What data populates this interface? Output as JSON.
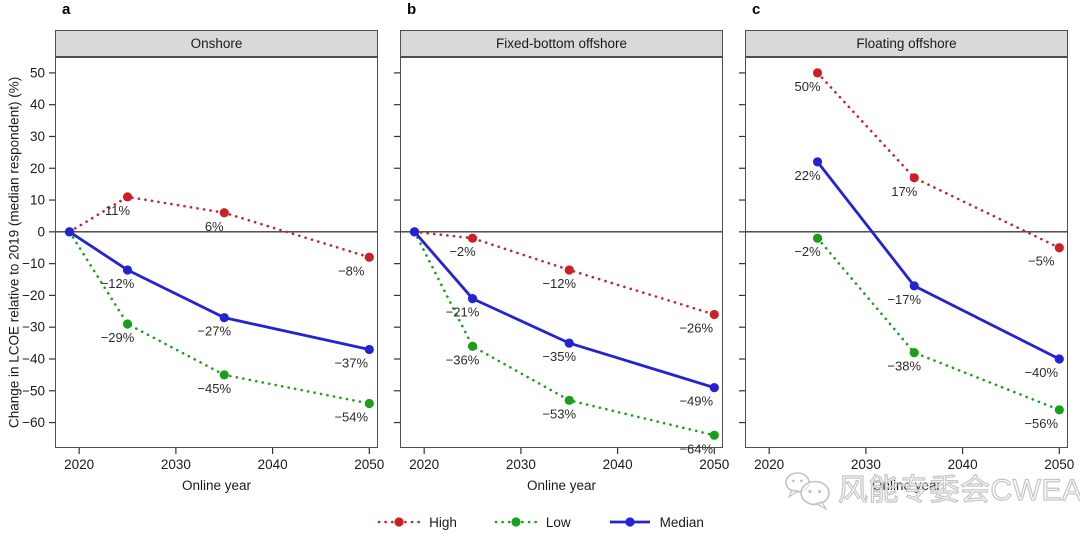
{
  "chart_data": {
    "type": "line",
    "title": "",
    "ylabel": "Change in LCOE relative to 2019 (median respondent) (%)",
    "xlabel": "Online year",
    "ylim": [
      -68,
      55
    ],
    "xlim": [
      2017.5,
      2050.9
    ],
    "grid": false,
    "zero_reference_line": 0,
    "yticks": [
      {
        "v": 50,
        "label": "50"
      },
      {
        "v": 40,
        "label": "40"
      },
      {
        "v": 30,
        "label": "30"
      },
      {
        "v": 20,
        "label": "20"
      },
      {
        "v": 10,
        "label": "10"
      },
      {
        "v": 0,
        "label": "0"
      },
      {
        "v": -10,
        "label": "−10"
      },
      {
        "v": -20,
        "label": "−20"
      },
      {
        "v": -30,
        "label": "−30"
      },
      {
        "v": -40,
        "label": "−40"
      },
      {
        "v": -50,
        "label": "−50"
      },
      {
        "v": -60,
        "label": "−60"
      }
    ],
    "xticks": [
      {
        "v": 2020,
        "label": "2020"
      },
      {
        "v": 2030,
        "label": "2030"
      },
      {
        "v": 2040,
        "label": "2040"
      },
      {
        "v": 2050,
        "label": "2050"
      }
    ],
    "legend": [
      {
        "name": "High",
        "color": "#cc1f26",
        "style": "dotted"
      },
      {
        "name": "Low",
        "color": "#18a018",
        "style": "dotted"
      },
      {
        "name": "Median",
        "color": "#2323d3",
        "style": "solid"
      }
    ],
    "legend_position": "bottom-center",
    "panels": [
      {
        "letter": "a",
        "title": "Onshore",
        "series": [
          {
            "name": "High",
            "points": [
              {
                "x": 2019,
                "y": 0,
                "label": ""
              },
              {
                "x": 2025,
                "y": 11,
                "label": "11%"
              },
              {
                "x": 2035,
                "y": 6,
                "label": "6%"
              },
              {
                "x": 2050,
                "y": -8,
                "label": "−8%"
              }
            ]
          },
          {
            "name": "Low",
            "points": [
              {
                "x": 2019,
                "y": 0,
                "label": ""
              },
              {
                "x": 2025,
                "y": -29,
                "label": "−29%"
              },
              {
                "x": 2035,
                "y": -45,
                "label": "−45%"
              },
              {
                "x": 2050,
                "y": -54,
                "label": "−54%"
              }
            ]
          },
          {
            "name": "Median",
            "points": [
              {
                "x": 2019,
                "y": 0,
                "label": ""
              },
              {
                "x": 2025,
                "y": -12,
                "label": "−12%"
              },
              {
                "x": 2035,
                "y": -27,
                "label": "−27%"
              },
              {
                "x": 2050,
                "y": -37,
                "label": "−37%"
              }
            ]
          }
        ]
      },
      {
        "letter": "b",
        "title": "Fixed-bottom offshore",
        "series": [
          {
            "name": "High",
            "points": [
              {
                "x": 2019,
                "y": 0,
                "label": ""
              },
              {
                "x": 2025,
                "y": -2,
                "label": "−2%"
              },
              {
                "x": 2035,
                "y": -12,
                "label": "−12%"
              },
              {
                "x": 2050,
                "y": -26,
                "label": "−26%"
              }
            ]
          },
          {
            "name": "Low",
            "points": [
              {
                "x": 2019,
                "y": 0,
                "label": ""
              },
              {
                "x": 2025,
                "y": -36,
                "label": "−36%"
              },
              {
                "x": 2035,
                "y": -53,
                "label": "−53%"
              },
              {
                "x": 2050,
                "y": -64,
                "label": "−64%"
              }
            ]
          },
          {
            "name": "Median",
            "points": [
              {
                "x": 2019,
                "y": 0,
                "label": ""
              },
              {
                "x": 2025,
                "y": -21,
                "label": "−21%"
              },
              {
                "x": 2035,
                "y": -35,
                "label": "−35%"
              },
              {
                "x": 2050,
                "y": -49,
                "label": "−49%"
              }
            ]
          }
        ]
      },
      {
        "letter": "c",
        "title": "Floating offshore",
        "series": [
          {
            "name": "High",
            "points": [
              {
                "x": 2025,
                "y": 50,
                "label": "50%"
              },
              {
                "x": 2035,
                "y": 17,
                "label": "17%"
              },
              {
                "x": 2050,
                "y": -5,
                "label": "−5%"
              }
            ]
          },
          {
            "name": "Low",
            "points": [
              {
                "x": 2025,
                "y": -2,
                "label": "−2%"
              },
              {
                "x": 2035,
                "y": -38,
                "label": "−38%"
              },
              {
                "x": 2050,
                "y": -56,
                "label": "−56%"
              }
            ]
          },
          {
            "name": "Median",
            "points": [
              {
                "x": 2025,
                "y": 22,
                "label": "22%"
              },
              {
                "x": 2035,
                "y": -17,
                "label": "−17%"
              },
              {
                "x": 2050,
                "y": -40,
                "label": "−40%"
              }
            ]
          }
        ]
      }
    ]
  },
  "watermark": {
    "icon": "wechat-icon",
    "text": "风能专委会CWEA"
  }
}
